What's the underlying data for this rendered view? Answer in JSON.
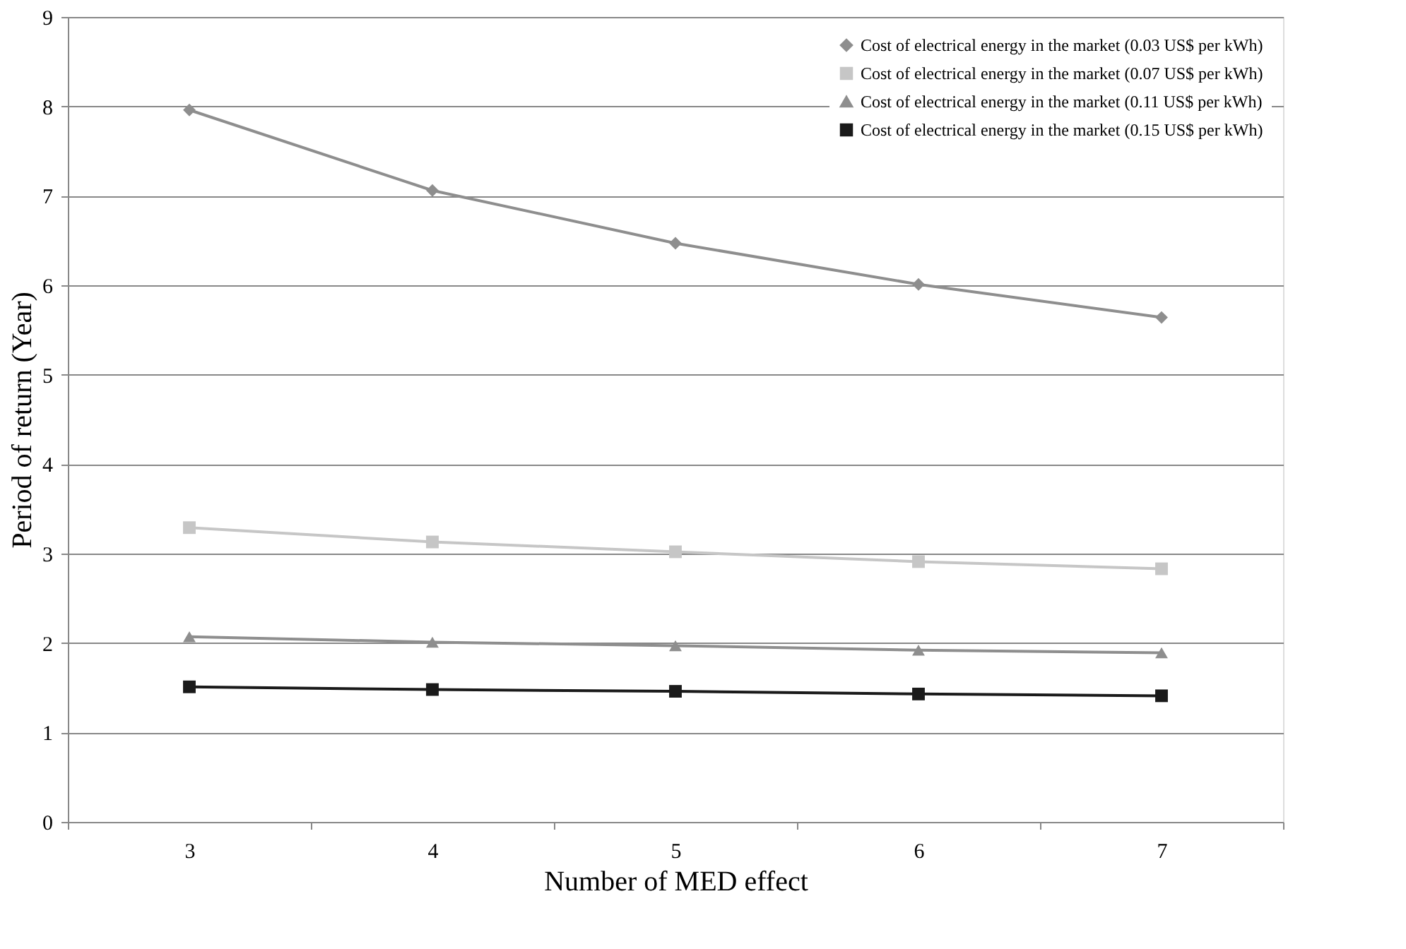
{
  "chart_data": {
    "type": "line",
    "xlabel": "Number of MED effect",
    "ylabel": "Period of return (Year)",
    "categories": [
      "3",
      "4",
      "5",
      "6",
      "7"
    ],
    "ylim": [
      0,
      9
    ],
    "yticks": [
      0,
      1,
      2,
      3,
      4,
      5,
      6,
      7,
      8,
      9
    ],
    "grid": "y",
    "legend": "top right",
    "line_style": "solid",
    "series": [
      {
        "name": "Cost of electrical energy in the market (0.03 US$ per kWh)",
        "color": "#8e8e8e",
        "marker": "diamond",
        "values": [
          7.96,
          7.06,
          6.47,
          6.01,
          5.64
        ]
      },
      {
        "name": "Cost of electrical energy in the market (0.07 US$ per kWh)",
        "color": "#c6c6c6",
        "marker": "square",
        "values": [
          3.29,
          3.13,
          3.02,
          2.91,
          2.83
        ]
      },
      {
        "name": "Cost of electrical energy in the market (0.11 US$ per kWh)",
        "color": "#8e8e8e",
        "marker": "triangle",
        "values": [
          2.07,
          2.01,
          1.97,
          1.92,
          1.89
        ]
      },
      {
        "name": "Cost of electrical energy in the market (0.15 US$ per kWh)",
        "color": "#1a1a1a",
        "marker": "square",
        "values": [
          1.51,
          1.48,
          1.46,
          1.43,
          1.41
        ]
      }
    ]
  }
}
